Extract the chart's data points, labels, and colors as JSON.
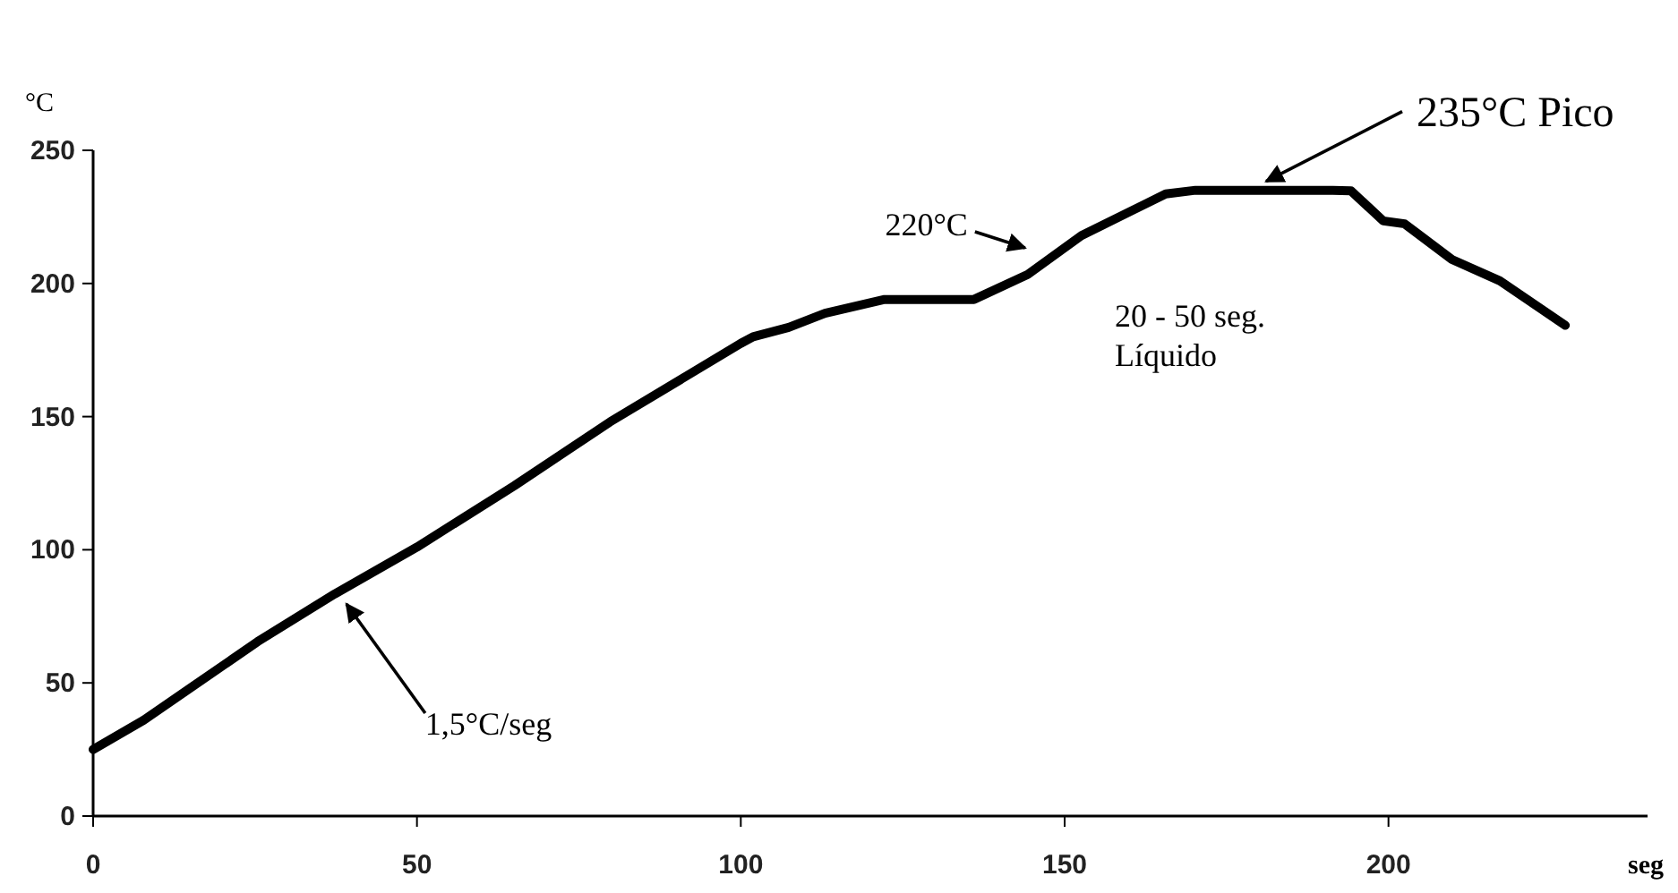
{
  "chart_data": {
    "type": "line",
    "xlabel": "seg",
    "ylabel": "°C",
    "xlim": [
      0,
      240
    ],
    "ylim": [
      0,
      250
    ],
    "xticks": [
      0,
      50,
      100,
      150,
      200
    ],
    "yticks": [
      0,
      50,
      100,
      150,
      200,
      250
    ],
    "grid": false,
    "marker": "none",
    "line_style": "solid",
    "series": [
      {
        "color": "#000000",
        "x": [
          0,
          7.8,
          25.4,
          37.3,
          50,
          65,
          79.8,
          100,
          101.9,
          107.4,
          113,
          122.2,
          136,
          144.3,
          152.6,
          165.6,
          170.2,
          191.4,
          194.2,
          199.2,
          202.5,
          209.8,
          217.2,
          227.3
        ],
        "values": [
          25,
          36,
          65.5,
          83.4,
          101,
          124,
          148,
          177.5,
          180,
          183.5,
          188.8,
          194,
          194,
          203.4,
          218,
          233.6,
          235,
          235,
          234.8,
          223.5,
          222.4,
          209,
          201,
          184.3
        ]
      }
    ],
    "annotations": [
      {
        "text": "1,5°C/seg",
        "x": 38,
        "y": 83
      },
      {
        "text": "220°C",
        "x": 145,
        "y": 210
      },
      {
        "text": "235°C Pico",
        "x": 180,
        "y": 235
      },
      "20 - 50 seg.\nLíquido"
    ]
  }
}
